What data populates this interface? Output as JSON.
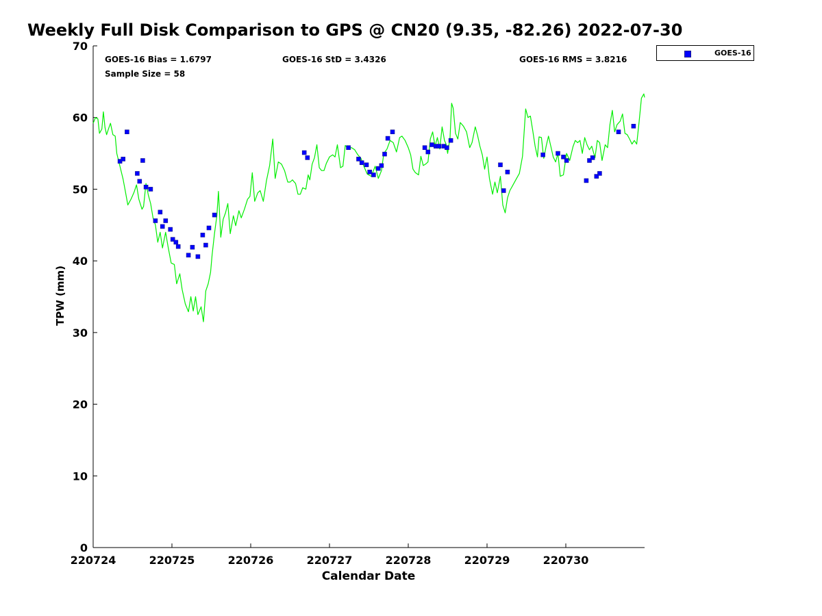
{
  "chart_data": {
    "type": "scatter",
    "title": "Weekly Full Disk Comparison to GPS @ CN20 (9.35, -82.26) 2022-07-30",
    "xlabel": "Calendar Date",
    "ylabel": "TPW (mm)",
    "xlim": [
      0,
      7
    ],
    "ylim": [
      0,
      70
    ],
    "x_tick_values": [
      0,
      1,
      2,
      3,
      4,
      5,
      6
    ],
    "x_tick_labels": [
      "220724",
      "220725",
      "220726",
      "220727",
      "220728",
      "220729",
      "220730"
    ],
    "y_tick_values": [
      0,
      10,
      20,
      30,
      40,
      50,
      60,
      70
    ],
    "y_tick_labels": [
      "0",
      "10",
      "20",
      "30",
      "40",
      "50",
      "60",
      "70"
    ],
    "stats": {
      "bias": "GOES-16 Bias = 1.6797",
      "std": "GOES-16 StD = 3.4326",
      "rms": "GOES-16 RMS = 3.8216",
      "sample": "Sample Size = 58"
    },
    "legend": [
      {
        "name": "GOES-16",
        "color": "#0000ff",
        "marker": "square"
      }
    ],
    "series": [
      {
        "name": "GOES-16",
        "kind": "scatter",
        "color": "#0000ff",
        "points": [
          [
            0.34,
            53.9
          ],
          [
            0.38,
            54.2
          ],
          [
            0.43,
            58.0
          ],
          [
            0.56,
            52.2
          ],
          [
            0.59,
            51.1
          ],
          [
            0.63,
            54.0
          ],
          [
            0.67,
            50.3
          ],
          [
            0.73,
            50.0
          ],
          [
            0.79,
            45.6
          ],
          [
            0.85,
            46.8
          ],
          [
            0.88,
            44.8
          ],
          [
            0.92,
            45.6
          ],
          [
            0.98,
            44.4
          ],
          [
            1.01,
            43.0
          ],
          [
            1.05,
            42.6
          ],
          [
            1.08,
            42.0
          ],
          [
            1.21,
            40.8
          ],
          [
            1.26,
            41.9
          ],
          [
            1.33,
            40.6
          ],
          [
            1.39,
            43.6
          ],
          [
            1.43,
            42.2
          ],
          [
            1.47,
            44.6
          ],
          [
            1.54,
            46.4
          ],
          [
            2.68,
            55.1
          ],
          [
            2.72,
            54.4
          ],
          [
            3.24,
            55.8
          ],
          [
            3.37,
            54.2
          ],
          [
            3.41,
            53.7
          ],
          [
            3.47,
            53.4
          ],
          [
            3.51,
            52.4
          ],
          [
            3.56,
            52.0
          ],
          [
            3.62,
            52.9
          ],
          [
            3.66,
            53.3
          ],
          [
            3.7,
            54.9
          ],
          [
            3.74,
            57.1
          ],
          [
            3.8,
            58.0
          ],
          [
            4.21,
            55.8
          ],
          [
            4.25,
            55.2
          ],
          [
            4.3,
            56.2
          ],
          [
            4.35,
            56.0
          ],
          [
            4.39,
            56.0
          ],
          [
            4.45,
            56.0
          ],
          [
            4.49,
            55.8
          ],
          [
            4.54,
            56.8
          ],
          [
            5.17,
            53.4
          ],
          [
            5.21,
            49.8
          ],
          [
            5.26,
            52.4
          ],
          [
            5.71,
            54.8
          ],
          [
            5.9,
            55.0
          ],
          [
            5.97,
            54.5
          ],
          [
            6.01,
            54.0
          ],
          [
            6.26,
            51.2
          ],
          [
            6.3,
            54.0
          ],
          [
            6.34,
            54.4
          ],
          [
            6.39,
            51.8
          ],
          [
            6.43,
            52.2
          ],
          [
            6.67,
            58.0
          ],
          [
            6.86,
            58.8
          ]
        ]
      },
      {
        "name": "GPS",
        "kind": "line",
        "color": "#00ee00",
        "points": [
          [
            0.0,
            59.2
          ],
          [
            0.03,
            60.0
          ],
          [
            0.06,
            59.8
          ],
          [
            0.08,
            57.8
          ],
          [
            0.11,
            58.4
          ],
          [
            0.13,
            60.8
          ],
          [
            0.15,
            58.6
          ],
          [
            0.17,
            57.6
          ],
          [
            0.2,
            58.6
          ],
          [
            0.22,
            59.2
          ],
          [
            0.25,
            57.6
          ],
          [
            0.28,
            57.4
          ],
          [
            0.3,
            55.0
          ],
          [
            0.34,
            53.2
          ],
          [
            0.38,
            51.4
          ],
          [
            0.41,
            49.6
          ],
          [
            0.44,
            47.8
          ],
          [
            0.48,
            48.6
          ],
          [
            0.52,
            49.6
          ],
          [
            0.55,
            50.6
          ],
          [
            0.58,
            48.6
          ],
          [
            0.62,
            47.2
          ],
          [
            0.64,
            47.6
          ],
          [
            0.67,
            50.8
          ],
          [
            0.7,
            49.2
          ],
          [
            0.73,
            48.0
          ],
          [
            0.76,
            46.0
          ],
          [
            0.79,
            45.0
          ],
          [
            0.82,
            42.6
          ],
          [
            0.85,
            44.0
          ],
          [
            0.88,
            41.8
          ],
          [
            0.92,
            44.0
          ],
          [
            0.95,
            42.0
          ],
          [
            0.99,
            39.7
          ],
          [
            1.03,
            39.5
          ],
          [
            1.06,
            36.8
          ],
          [
            1.1,
            38.2
          ],
          [
            1.13,
            36.0
          ],
          [
            1.17,
            34.0
          ],
          [
            1.21,
            32.9
          ],
          [
            1.24,
            35.0
          ],
          [
            1.27,
            33.0
          ],
          [
            1.3,
            35.0
          ],
          [
            1.33,
            32.5
          ],
          [
            1.37,
            33.6
          ],
          [
            1.4,
            31.5
          ],
          [
            1.43,
            35.8
          ],
          [
            1.46,
            36.8
          ],
          [
            1.49,
            38.4
          ],
          [
            1.51,
            40.8
          ],
          [
            1.54,
            43.8
          ],
          [
            1.57,
            46.3
          ],
          [
            1.59,
            49.7
          ],
          [
            1.62,
            43.3
          ],
          [
            1.65,
            45.8
          ],
          [
            1.68,
            46.7
          ],
          [
            1.71,
            48.0
          ],
          [
            1.74,
            43.8
          ],
          [
            1.78,
            46.3
          ],
          [
            1.81,
            44.9
          ],
          [
            1.85,
            47.0
          ],
          [
            1.88,
            46.0
          ],
          [
            1.92,
            47.2
          ],
          [
            1.96,
            48.6
          ],
          [
            1.99,
            49.0
          ],
          [
            2.02,
            52.3
          ],
          [
            2.05,
            48.3
          ],
          [
            2.09,
            49.5
          ],
          [
            2.12,
            49.8
          ],
          [
            2.16,
            48.3
          ],
          [
            2.2,
            51.2
          ],
          [
            2.24,
            53.3
          ],
          [
            2.28,
            57.0
          ],
          [
            2.31,
            51.5
          ],
          [
            2.35,
            53.8
          ],
          [
            2.39,
            53.5
          ],
          [
            2.43,
            52.6
          ],
          [
            2.47,
            51.0
          ],
          [
            2.5,
            51.0
          ],
          [
            2.53,
            51.3
          ],
          [
            2.57,
            50.8
          ],
          [
            2.6,
            49.3
          ],
          [
            2.63,
            49.3
          ],
          [
            2.66,
            50.2
          ],
          [
            2.7,
            50.0
          ],
          [
            2.73,
            52.0
          ],
          [
            2.75,
            51.3
          ],
          [
            2.78,
            53.5
          ],
          [
            2.81,
            54.4
          ],
          [
            2.84,
            56.2
          ],
          [
            2.87,
            53.0
          ],
          [
            2.9,
            52.6
          ],
          [
            2.93,
            52.6
          ],
          [
            2.96,
            53.6
          ],
          [
            3.0,
            54.5
          ],
          [
            3.04,
            54.8
          ],
          [
            3.07,
            54.5
          ],
          [
            3.1,
            56.2
          ],
          [
            3.14,
            53.0
          ],
          [
            3.17,
            53.2
          ],
          [
            3.2,
            56.1
          ],
          [
            3.24,
            55.7
          ],
          [
            3.28,
            55.8
          ],
          [
            3.32,
            55.5
          ],
          [
            3.36,
            54.8
          ],
          [
            3.4,
            54.3
          ],
          [
            3.44,
            53.1
          ],
          [
            3.48,
            52.1
          ],
          [
            3.53,
            51.8
          ],
          [
            3.58,
            53.2
          ],
          [
            3.62,
            51.5
          ],
          [
            3.66,
            52.6
          ],
          [
            3.69,
            55.0
          ],
          [
            3.73,
            55.6
          ],
          [
            3.77,
            56.8
          ],
          [
            3.81,
            56.5
          ],
          [
            3.85,
            55.2
          ],
          [
            3.89,
            57.2
          ],
          [
            3.92,
            57.4
          ],
          [
            3.96,
            56.8
          ],
          [
            4.0,
            55.8
          ],
          [
            4.03,
            54.8
          ],
          [
            4.06,
            52.8
          ],
          [
            4.09,
            52.3
          ],
          [
            4.13,
            52.0
          ],
          [
            4.16,
            54.6
          ],
          [
            4.19,
            53.3
          ],
          [
            4.22,
            53.5
          ],
          [
            4.25,
            53.8
          ],
          [
            4.28,
            57.0
          ],
          [
            4.31,
            58.0
          ],
          [
            4.34,
            56.0
          ],
          [
            4.37,
            57.2
          ],
          [
            4.4,
            55.6
          ],
          [
            4.43,
            58.7
          ],
          [
            4.46,
            56.8
          ],
          [
            4.48,
            56.3
          ],
          [
            4.5,
            55.0
          ],
          [
            4.53,
            57.2
          ],
          [
            4.55,
            62.0
          ],
          [
            4.57,
            61.3
          ],
          [
            4.6,
            57.8
          ],
          [
            4.63,
            57.0
          ],
          [
            4.66,
            59.3
          ],
          [
            4.7,
            58.8
          ],
          [
            4.74,
            58.0
          ],
          [
            4.78,
            55.8
          ],
          [
            4.81,
            56.5
          ],
          [
            4.85,
            58.7
          ],
          [
            4.88,
            57.5
          ],
          [
            4.91,
            56.0
          ],
          [
            4.94,
            54.8
          ],
          [
            4.97,
            52.8
          ],
          [
            5.0,
            54.5
          ],
          [
            5.03,
            51.5
          ],
          [
            5.07,
            49.3
          ],
          [
            5.1,
            51.0
          ],
          [
            5.13,
            49.5
          ],
          [
            5.17,
            51.8
          ],
          [
            5.2,
            47.8
          ],
          [
            5.23,
            46.7
          ],
          [
            5.26,
            48.8
          ],
          [
            5.29,
            49.8
          ],
          [
            5.33,
            50.6
          ],
          [
            5.37,
            51.4
          ],
          [
            5.41,
            52.2
          ],
          [
            5.45,
            54.6
          ],
          [
            5.49,
            61.2
          ],
          [
            5.52,
            60.0
          ],
          [
            5.55,
            60.2
          ],
          [
            5.58,
            58.2
          ],
          [
            5.61,
            56.0
          ],
          [
            5.64,
            54.5
          ],
          [
            5.66,
            57.3
          ],
          [
            5.69,
            57.2
          ],
          [
            5.72,
            54.3
          ],
          [
            5.75,
            56.0
          ],
          [
            5.78,
            57.4
          ],
          [
            5.81,
            56.0
          ],
          [
            5.84,
            54.5
          ],
          [
            5.87,
            53.8
          ],
          [
            5.9,
            55.0
          ],
          [
            5.93,
            51.8
          ],
          [
            5.97,
            52.0
          ],
          [
            6.01,
            55.0
          ],
          [
            6.05,
            54.0
          ],
          [
            6.09,
            55.9
          ],
          [
            6.12,
            56.8
          ],
          [
            6.15,
            56.5
          ],
          [
            6.18,
            56.8
          ],
          [
            6.21,
            55.0
          ],
          [
            6.24,
            57.2
          ],
          [
            6.27,
            56.2
          ],
          [
            6.3,
            55.5
          ],
          [
            6.33,
            56.0
          ],
          [
            6.37,
            54.4
          ],
          [
            6.4,
            56.8
          ],
          [
            6.43,
            56.5
          ],
          [
            6.46,
            54.0
          ],
          [
            6.5,
            56.2
          ],
          [
            6.53,
            55.8
          ],
          [
            6.56,
            59.0
          ],
          [
            6.59,
            61.0
          ],
          [
            6.62,
            58.0
          ],
          [
            6.65,
            59.0
          ],
          [
            6.69,
            59.5
          ],
          [
            6.72,
            60.5
          ],
          [
            6.75,
            57.8
          ],
          [
            6.78,
            57.6
          ],
          [
            6.81,
            57.0
          ],
          [
            6.84,
            56.3
          ],
          [
            6.87,
            56.8
          ],
          [
            6.9,
            56.3
          ],
          [
            6.93,
            59.4
          ],
          [
            6.96,
            62.7
          ],
          [
            6.99,
            63.3
          ],
          [
            7.0,
            62.8
          ]
        ]
      }
    ]
  }
}
